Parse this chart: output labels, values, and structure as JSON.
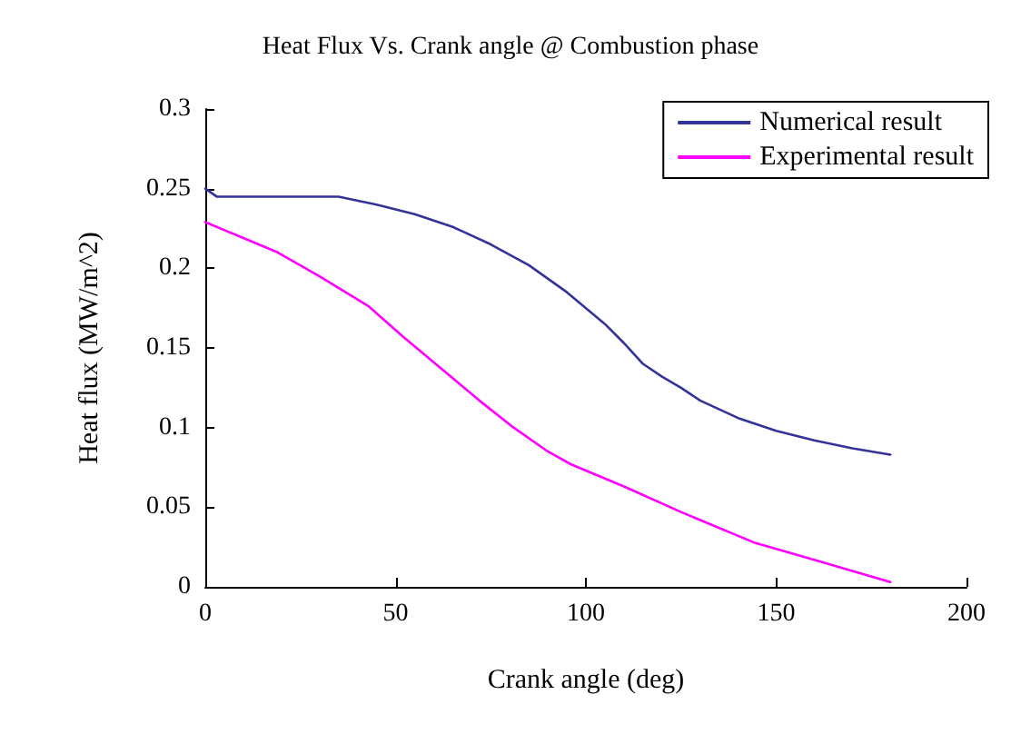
{
  "chart_data": {
    "type": "line",
    "title": "Heat Flux Vs. Crank angle @ Combustion phase",
    "xlabel": "Crank angle (deg)",
    "ylabel": "Heat flux (MW/m^2)",
    "xlim": [
      0,
      200
    ],
    "xticks": [
      0,
      50,
      100,
      150,
      200
    ],
    "ylim": [
      0,
      0.3
    ],
    "yticks": [
      0,
      0.05,
      0.1,
      0.15,
      0.2,
      0.25,
      0.3
    ],
    "grid": false,
    "legend": "top right",
    "marker": "none",
    "line_style": "solid",
    "series": [
      {
        "name": "Numerical result",
        "color": "#333399",
        "x": [
          0,
          3,
          10,
          20,
          35,
          45,
          55,
          65,
          75,
          85,
          95,
          100,
          105,
          110,
          115,
          120,
          125,
          130,
          140,
          150,
          160,
          170,
          180
        ],
        "values": [
          0.25,
          0.245,
          0.245,
          0.245,
          0.245,
          0.24,
          0.234,
          0.226,
          0.215,
          0.202,
          0.185,
          0.175,
          0.165,
          0.153,
          0.14,
          0.132,
          0.125,
          0.117,
          0.106,
          0.098,
          0.092,
          0.087,
          0.083
        ]
      },
      {
        "name": "Experimental result",
        "color": "#ff00ff",
        "x": [
          0,
          10,
          19,
          30,
          43,
          52,
          62,
          72,
          81,
          90,
          96,
          110,
          125,
          144,
          160,
          170,
          180
        ],
        "values": [
          0.229,
          0.219,
          0.21,
          0.195,
          0.176,
          0.157,
          0.137,
          0.117,
          0.1,
          0.085,
          0.077,
          0.063,
          0.047,
          0.028,
          0.017,
          0.01,
          0.003
        ]
      }
    ]
  }
}
